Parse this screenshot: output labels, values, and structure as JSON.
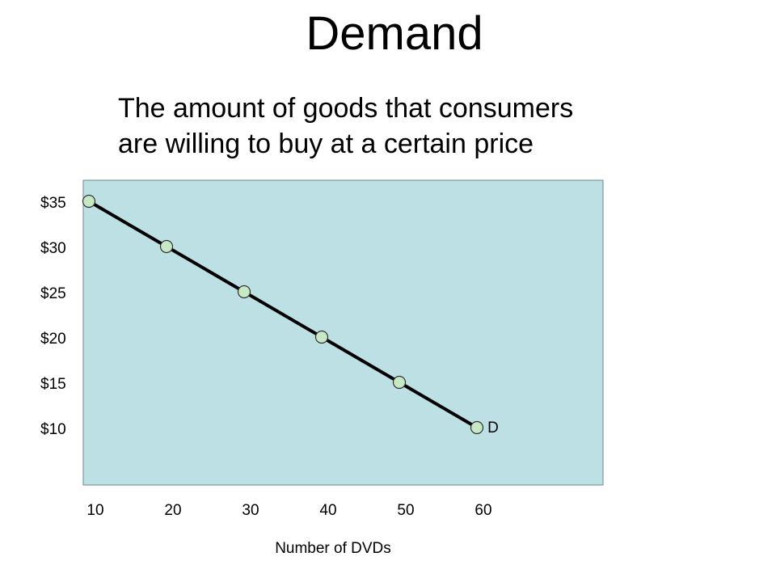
{
  "slide": {
    "title": "Demand",
    "subtitle_lines": [
      "The amount of goods that consumers",
      "are willing to buy at a certain price"
    ]
  },
  "chart_data": {
    "type": "line",
    "title": "",
    "xlabel": "Number of DVDs",
    "ylabel": "",
    "x_tick_labels": [
      "10",
      "20",
      "30",
      "40",
      "50",
      "60"
    ],
    "x_ticks": [
      10,
      20,
      30,
      40,
      50,
      60
    ],
    "y_tick_labels": [
      "$35",
      "$30",
      "$25",
      "$20",
      "$15",
      "$10"
    ],
    "y_ticks": [
      35,
      30,
      25,
      20,
      15,
      10
    ],
    "xlim": [
      3,
      70
    ],
    "ylim": [
      5,
      37.5
    ],
    "grid": false,
    "background_color": "#bde0e4",
    "line_color": "#000000",
    "marker_fill": "#c6e8c4",
    "series": [
      {
        "name": "D",
        "x": [
          10,
          20,
          30,
          40,
          50,
          60
        ],
        "y": [
          35,
          30,
          25,
          20,
          15,
          10
        ]
      }
    ],
    "annotations": [
      {
        "text": "D",
        "x": 57,
        "y": 10
      }
    ]
  }
}
